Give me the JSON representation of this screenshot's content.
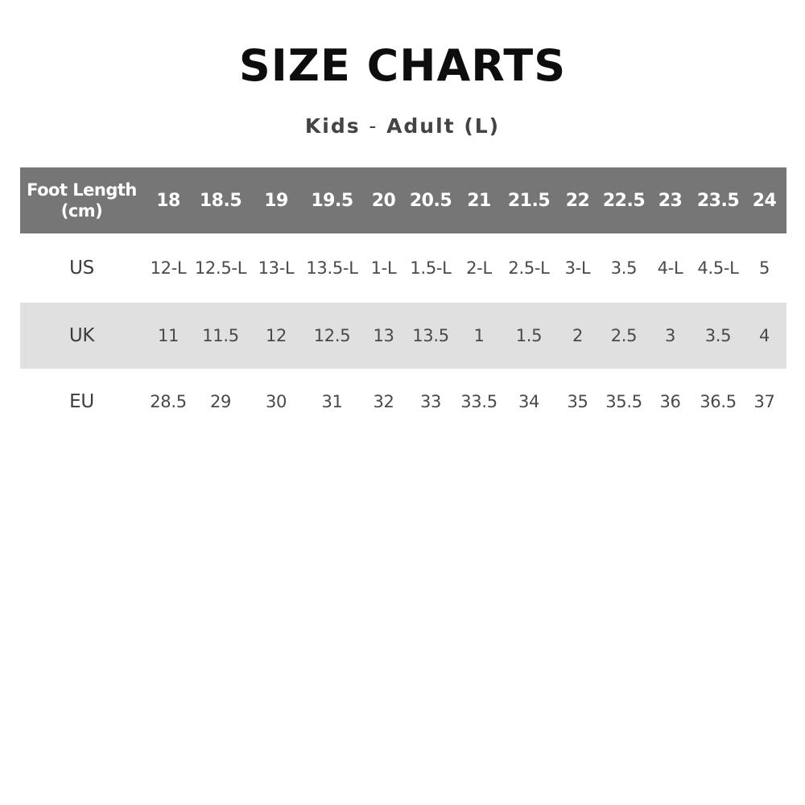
{
  "title": "SIZE CHARTS",
  "subtitle": {
    "left": "Kids",
    "sep": "-",
    "right": "Adult (L)"
  },
  "table": {
    "header_label": "Foot Length (cm)",
    "foot_length": [
      "18",
      "18.5",
      "19",
      "19.5",
      "20",
      "20.5",
      "21",
      "21.5",
      "22",
      "22.5",
      "23",
      "23.5",
      "24"
    ],
    "rows": [
      {
        "label": "US",
        "values": [
          "12-L",
          "12.5-L",
          "13-L",
          "13.5-L",
          "1-L",
          "1.5-L",
          "2-L",
          "2.5-L",
          "3-L",
          "3.5",
          "4-L",
          "4.5-L",
          "5"
        ]
      },
      {
        "label": "UK",
        "values": [
          "11",
          "11.5",
          "12",
          "12.5",
          "13",
          "13.5",
          "1",
          "1.5",
          "2",
          "2.5",
          "3",
          "3.5",
          "4"
        ]
      },
      {
        "label": "EU",
        "values": [
          "28.5",
          "29",
          "30",
          "31",
          "32",
          "33",
          "33.5",
          "34",
          "35",
          "35.5",
          "36",
          "36.5",
          "37"
        ]
      }
    ]
  },
  "colors": {
    "header_bg": "#767676",
    "stripe_bg": "#e0e0e0"
  }
}
